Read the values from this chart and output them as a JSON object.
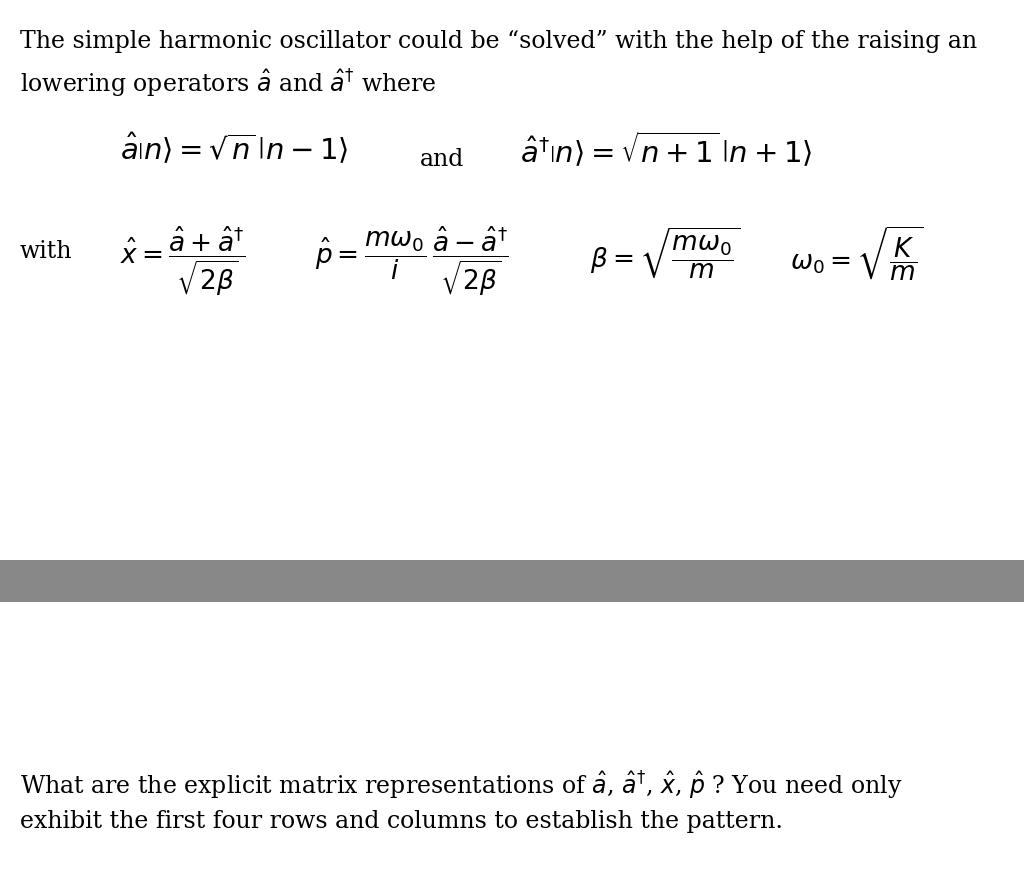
{
  "bg_color": "#ffffff",
  "gray_bar_color": "#888888",
  "text_color": "#000000",
  "font_size_body": 17,
  "line1": "The simple harmonic oscillator could be “solved” with the help of the raising an",
  "line2": "lowering operators $\\hat{a}$ and $\\hat{a}^{\\dagger}$ where",
  "bottom1": "What are the explicit matrix representations of $\\hat{a}$, $\\hat{a}^{\\dagger}$, $\\hat{x}$, $\\hat{p}$ ? You need only",
  "bottom2": "exhibit the first four rows and columns to establish the pattern.",
  "fig_width": 10.24,
  "fig_height": 8.96,
  "dpi": 100
}
